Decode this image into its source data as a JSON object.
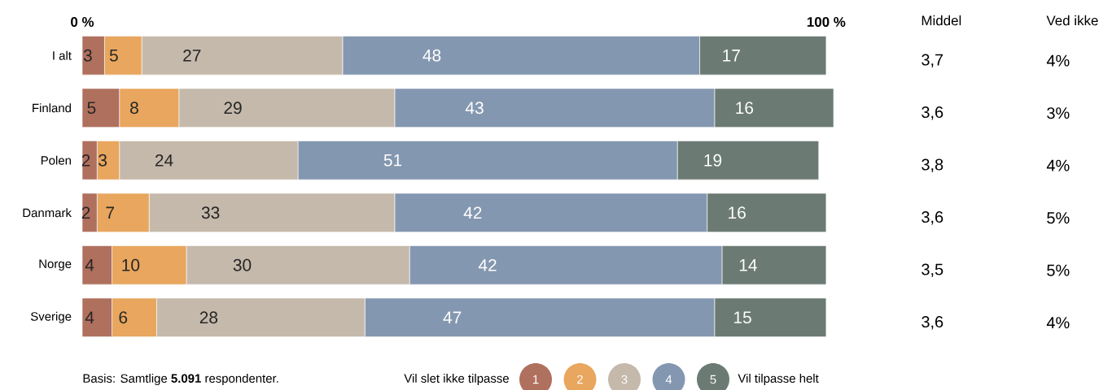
{
  "chart_data": [
    {
      "type": "bar",
      "orientation": "horizontal",
      "stacked": true,
      "categories": [
        "I alt",
        "Finland",
        "Polen",
        "Danmark",
        "Norge",
        "Sverige"
      ],
      "series": [
        {
          "name": "1",
          "color": "#b0705e",
          "values": [
            3,
            5,
            2,
            2,
            4,
            4
          ]
        },
        {
          "name": "2",
          "color": "#e8a65e",
          "values": [
            5,
            8,
            3,
            7,
            10,
            6
          ]
        },
        {
          "name": "3",
          "color": "#c5b9ab",
          "values": [
            27,
            29,
            24,
            33,
            30,
            28
          ]
        },
        {
          "name": "4",
          "color": "#8497b0",
          "values": [
            48,
            43,
            51,
            42,
            42,
            47
          ]
        },
        {
          "name": "5",
          "color": "#6b7b73",
          "values": [
            17,
            16,
            19,
            16,
            14,
            15
          ]
        }
      ],
      "xlim": [
        0,
        101
      ],
      "xticks": [
        {
          "value": 0,
          "label": "0 %"
        },
        {
          "value": 100,
          "label": "100 %"
        }
      ],
      "data_labels": true,
      "legend": "bottom",
      "annotations": [
        "Basis: Samtlige **5.091** respondenter.",
        "Vil slet ikke tilpasse",
        "Vil tilpasse helt"
      ]
    },
    {
      "type": "other",
      "title": "Middel",
      "annotations": [
        "3,7",
        "3,6",
        "3,8",
        "3,6",
        "3,5",
        "3,6"
      ]
    },
    {
      "type": "other",
      "title": "Ved ikke",
      "annotations": [
        "4%",
        "3%",
        "4%",
        "5%",
        "5%",
        "4%"
      ]
    }
  ]
}
